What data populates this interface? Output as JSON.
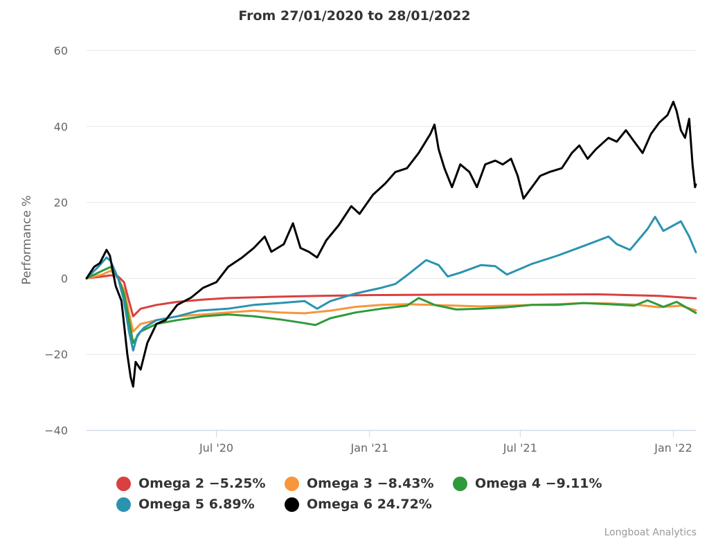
{
  "chart_data": {
    "type": "line",
    "title": "From 27/01/2020 to 28/01/2022",
    "ylabel": "Performance %",
    "xlabel": "",
    "x_range": [
      "2020-01-27",
      "2022-01-28"
    ],
    "ylim": [
      -40,
      60
    ],
    "y_ticks": [
      -40,
      -20,
      0,
      20,
      40,
      60
    ],
    "y_tick_labels": [
      "−40",
      "−20",
      "0",
      "20",
      "40",
      "60"
    ],
    "x_ticks": [
      {
        "date": "2020-07-01",
        "label": "Jul '20"
      },
      {
        "date": "2021-01-01",
        "label": "Jan '21"
      },
      {
        "date": "2021-07-01",
        "label": "Jul '21"
      },
      {
        "date": "2022-01-01",
        "label": "Jan '22"
      }
    ],
    "grid": "horizontal",
    "legend_position": "bottom",
    "series": [
      {
        "name": "Omega 2",
        "legend_label": "Omega 2 −5.25%",
        "color": "#d94040",
        "points": [
          [
            "2020-01-27",
            0
          ],
          [
            "2020-02-15",
            0.5
          ],
          [
            "2020-02-25",
            0.8
          ],
          [
            "2020-03-05",
            0.5
          ],
          [
            "2020-03-12",
            -1
          ],
          [
            "2020-03-18",
            -6
          ],
          [
            "2020-03-23",
            -10
          ],
          [
            "2020-04-01",
            -8
          ],
          [
            "2020-04-20",
            -7
          ],
          [
            "2020-05-15",
            -6.2
          ],
          [
            "2020-06-15",
            -5.6
          ],
          [
            "2020-07-15",
            -5.2
          ],
          [
            "2020-09-01",
            -4.9
          ],
          [
            "2020-11-01",
            -4.6
          ],
          [
            "2021-01-01",
            -4.4
          ],
          [
            "2021-04-01",
            -4.3
          ],
          [
            "2021-07-01",
            -4.3
          ],
          [
            "2021-10-01",
            -4.2
          ],
          [
            "2021-12-15",
            -4.6
          ],
          [
            "2022-01-28",
            -5.25
          ]
        ]
      },
      {
        "name": "Omega 3",
        "legend_label": "Omega 3 −8.43%",
        "color": "#f7963a",
        "points": [
          [
            "2020-01-27",
            0
          ],
          [
            "2020-02-15",
            1
          ],
          [
            "2020-02-25",
            2
          ],
          [
            "2020-03-05",
            0
          ],
          [
            "2020-03-12",
            -3
          ],
          [
            "2020-03-18",
            -9
          ],
          [
            "2020-03-23",
            -14
          ],
          [
            "2020-04-01",
            -12
          ],
          [
            "2020-04-20",
            -11
          ],
          [
            "2020-05-15",
            -10
          ],
          [
            "2020-06-15",
            -9.5
          ],
          [
            "2020-07-15",
            -9
          ],
          [
            "2020-08-15",
            -8.5
          ],
          [
            "2020-09-15",
            -9
          ],
          [
            "2020-10-15",
            -9.2
          ],
          [
            "2020-11-15",
            -8.5
          ],
          [
            "2020-12-15",
            -7.5
          ],
          [
            "2021-01-15",
            -7
          ],
          [
            "2021-02-15",
            -6.8
          ],
          [
            "2021-03-15",
            -7
          ],
          [
            "2021-04-15",
            -7.2
          ],
          [
            "2021-05-15",
            -7.4
          ],
          [
            "2021-06-15",
            -7.2
          ],
          [
            "2021-07-15",
            -7
          ],
          [
            "2021-08-15",
            -6.8
          ],
          [
            "2021-09-15",
            -6.5
          ],
          [
            "2021-10-15",
            -6.6
          ],
          [
            "2021-11-15",
            -6.9
          ],
          [
            "2021-12-15",
            -7.6
          ],
          [
            "2022-01-10",
            -7.2
          ],
          [
            "2022-01-28",
            -8.43
          ]
        ]
      },
      {
        "name": "Omega 4",
        "legend_label": "Omega 4 −9.11%",
        "color": "#2f9a3a",
        "points": [
          [
            "2020-01-27",
            0
          ],
          [
            "2020-02-15",
            2
          ],
          [
            "2020-02-25",
            3
          ],
          [
            "2020-03-05",
            0
          ],
          [
            "2020-03-12",
            -4
          ],
          [
            "2020-03-18",
            -11
          ],
          [
            "2020-03-23",
            -17
          ],
          [
            "2020-04-01",
            -14
          ],
          [
            "2020-04-20",
            -12
          ],
          [
            "2020-05-15",
            -11
          ],
          [
            "2020-06-15",
            -10
          ],
          [
            "2020-07-15",
            -9.5
          ],
          [
            "2020-08-15",
            -10
          ],
          [
            "2020-09-15",
            -10.8
          ],
          [
            "2020-10-15",
            -11.8
          ],
          [
            "2020-10-28",
            -12.3
          ],
          [
            "2020-11-15",
            -10.5
          ],
          [
            "2020-12-15",
            -9
          ],
          [
            "2021-01-15",
            -8
          ],
          [
            "2021-02-15",
            -7.2
          ],
          [
            "2021-03-01",
            -5.2
          ],
          [
            "2021-03-20",
            -7
          ],
          [
            "2021-04-15",
            -8.2
          ],
          [
            "2021-05-15",
            -8
          ],
          [
            "2021-06-15",
            -7.6
          ],
          [
            "2021-07-15",
            -7
          ],
          [
            "2021-08-15",
            -7
          ],
          [
            "2021-09-15",
            -6.5
          ],
          [
            "2021-10-15",
            -6.8
          ],
          [
            "2021-11-15",
            -7.2
          ],
          [
            "2021-12-01",
            -5.8
          ],
          [
            "2021-12-20",
            -7.5
          ],
          [
            "2022-01-05",
            -6.2
          ],
          [
            "2022-01-28",
            -9.11
          ]
        ]
      },
      {
        "name": "Omega 5",
        "legend_label": "Omega 5 6.89%",
        "color": "#2a93b0",
        "points": [
          [
            "2020-01-27",
            0
          ],
          [
            "2020-02-10",
            3
          ],
          [
            "2020-02-20",
            5.5
          ],
          [
            "2020-02-25",
            4.5
          ],
          [
            "2020-03-05",
            0
          ],
          [
            "2020-03-12",
            -6
          ],
          [
            "2020-03-18",
            -14
          ],
          [
            "2020-03-23",
            -19
          ],
          [
            "2020-03-28",
            -15
          ],
          [
            "2020-04-05",
            -13
          ],
          [
            "2020-04-20",
            -11
          ],
          [
            "2020-05-15",
            -10
          ],
          [
            "2020-06-10",
            -8.5
          ],
          [
            "2020-07-15",
            -8
          ],
          [
            "2020-08-15",
            -7
          ],
          [
            "2020-09-15",
            -6.5
          ],
          [
            "2020-10-15",
            -6
          ],
          [
            "2020-10-30",
            -8
          ],
          [
            "2020-11-15",
            -6
          ],
          [
            "2020-12-15",
            -4
          ],
          [
            "2021-01-15",
            -2.5
          ],
          [
            "2021-02-01",
            -1.5
          ],
          [
            "2021-02-15",
            0.8
          ],
          [
            "2021-03-10",
            4.8
          ],
          [
            "2021-03-25",
            3.5
          ],
          [
            "2021-04-05",
            0.5
          ],
          [
            "2021-04-20",
            1.5
          ],
          [
            "2021-05-15",
            3.5
          ],
          [
            "2021-06-01",
            3.2
          ],
          [
            "2021-06-15",
            1
          ],
          [
            "2021-07-15",
            3.8
          ],
          [
            "2021-08-15",
            6
          ],
          [
            "2021-09-15",
            8.5
          ],
          [
            "2021-10-15",
            11
          ],
          [
            "2021-10-25",
            9
          ],
          [
            "2021-11-10",
            7.5
          ],
          [
            "2021-12-01",
            13
          ],
          [
            "2021-12-10",
            16.2
          ],
          [
            "2021-12-20",
            12.5
          ],
          [
            "2022-01-10",
            15
          ],
          [
            "2022-01-20",
            11
          ],
          [
            "2022-01-28",
            6.89
          ]
        ]
      },
      {
        "name": "Omega 6",
        "legend_label": "Omega 6 24.72%",
        "color": "#000000",
        "points": [
          [
            "2020-01-27",
            0
          ],
          [
            "2020-02-05",
            3
          ],
          [
            "2020-02-12",
            4
          ],
          [
            "2020-02-20",
            7.5
          ],
          [
            "2020-02-24",
            6
          ],
          [
            "2020-03-02",
            -2
          ],
          [
            "2020-03-09",
            -6
          ],
          [
            "2020-03-12",
            -12
          ],
          [
            "2020-03-16",
            -20
          ],
          [
            "2020-03-20",
            -26
          ],
          [
            "2020-03-23",
            -28.5
          ],
          [
            "2020-03-26",
            -22
          ],
          [
            "2020-04-01",
            -24
          ],
          [
            "2020-04-09",
            -17
          ],
          [
            "2020-04-20",
            -12
          ],
          [
            "2020-05-01",
            -11
          ],
          [
            "2020-05-15",
            -7
          ],
          [
            "2020-06-01",
            -5
          ],
          [
            "2020-06-15",
            -2.5
          ],
          [
            "2020-07-01",
            -1
          ],
          [
            "2020-07-15",
            3
          ],
          [
            "2020-08-01",
            5.5
          ],
          [
            "2020-08-15",
            8
          ],
          [
            "2020-08-28",
            11
          ],
          [
            "2020-09-05",
            7
          ],
          [
            "2020-09-20",
            9
          ],
          [
            "2020-10-01",
            14.5
          ],
          [
            "2020-10-10",
            8
          ],
          [
            "2020-10-20",
            7
          ],
          [
            "2020-10-30",
            5.5
          ],
          [
            "2020-11-10",
            10
          ],
          [
            "2020-11-25",
            14
          ],
          [
            "2020-12-10",
            19
          ],
          [
            "2020-12-20",
            17
          ],
          [
            "2021-01-05",
            22
          ],
          [
            "2021-01-20",
            25
          ],
          [
            "2021-02-01",
            28
          ],
          [
            "2021-02-15",
            29
          ],
          [
            "2021-03-01",
            33
          ],
          [
            "2021-03-15",
            38
          ],
          [
            "2021-03-20",
            40.5
          ],
          [
            "2021-03-25",
            34
          ],
          [
            "2021-04-01",
            29
          ],
          [
            "2021-04-10",
            24
          ],
          [
            "2021-04-20",
            30
          ],
          [
            "2021-05-01",
            28
          ],
          [
            "2021-05-10",
            24
          ],
          [
            "2021-05-20",
            30
          ],
          [
            "2021-06-01",
            31
          ],
          [
            "2021-06-10",
            30
          ],
          [
            "2021-06-20",
            31.5
          ],
          [
            "2021-06-28",
            27
          ],
          [
            "2021-07-05",
            21
          ],
          [
            "2021-07-15",
            24
          ],
          [
            "2021-07-25",
            27
          ],
          [
            "2021-08-05",
            28
          ],
          [
            "2021-08-20",
            29
          ],
          [
            "2021-09-01",
            33
          ],
          [
            "2021-09-10",
            35
          ],
          [
            "2021-09-20",
            31.5
          ],
          [
            "2021-09-30",
            34
          ],
          [
            "2021-10-15",
            37
          ],
          [
            "2021-10-25",
            36
          ],
          [
            "2021-11-05",
            39
          ],
          [
            "2021-11-15",
            36
          ],
          [
            "2021-11-25",
            33
          ],
          [
            "2021-12-05",
            38
          ],
          [
            "2021-12-15",
            41
          ],
          [
            "2021-12-25",
            43
          ],
          [
            "2022-01-01",
            46.5
          ],
          [
            "2022-01-05",
            44
          ],
          [
            "2022-01-10",
            39
          ],
          [
            "2022-01-15",
            37
          ],
          [
            "2022-01-20",
            42
          ],
          [
            "2022-01-24",
            30
          ],
          [
            "2022-01-27",
            24
          ],
          [
            "2022-01-28",
            24.72
          ]
        ]
      }
    ]
  },
  "credits": "Longboat Analytics"
}
